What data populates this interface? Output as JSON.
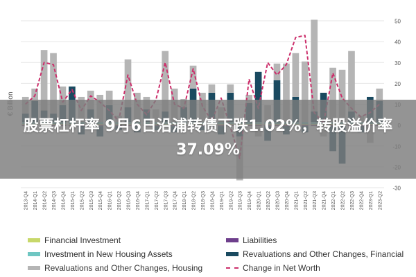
{
  "chart_data": {
    "type": "bar",
    "ylabel": "€ Billion",
    "ylim": [
      -30,
      50
    ],
    "yticks": [
      -30,
      -20,
      -10,
      0,
      10,
      20,
      30,
      40,
      50
    ],
    "grid": true,
    "legend_position": "bottom",
    "categories": [
      "2013-Q4",
      "2014-Q1",
      "2014-Q2",
      "2014-Q3",
      "2014-Q4",
      "2015-Q1",
      "2015-Q2",
      "2015-Q3",
      "2015-Q4",
      "2016-Q1",
      "2016-Q2",
      "2016-Q3",
      "2016-Q4",
      "2017-Q1",
      "2017-Q2",
      "2017-Q3",
      "2017-Q4",
      "2018-Q1",
      "2018-Q2",
      "2018-Q3",
      "2018-Q4",
      "2019-Q1",
      "2019-Q2",
      "2019-Q3",
      "2019-Q4",
      "2020-Q1",
      "2020-Q2",
      "2020-Q3",
      "2020-Q4",
      "2021-Q1",
      "2021-Q2",
      "2021-Q3",
      "2021-Q4",
      "2022-Q1",
      "2022-Q2",
      "2022-Q3",
      "2022-Q4",
      "2023-Q1",
      "2023-Q2"
    ],
    "series": [
      {
        "name": "Financial Investment",
        "kind": "bar",
        "color": "#c8d86a",
        "values": [
          0.5,
          0.5,
          1,
          0.5,
          0.5,
          0.5,
          0.5,
          0.5,
          0.5,
          0.5,
          0.5,
          0.5,
          0.5,
          0.5,
          0.5,
          0.5,
          0.5,
          0.5,
          0.5,
          0.5,
          0.5,
          0.5,
          0.5,
          0.5,
          0.5,
          0.5,
          0.5,
          0.5,
          0.5,
          0.5,
          0.5,
          0.5,
          0.5,
          0.5,
          0.5,
          0.5,
          0.5,
          0.5,
          0.5
        ]
      },
      {
        "name": "Liabilities",
        "kind": "bar",
        "color": "#6e3f8c",
        "values": [
          -0.5,
          -0.5,
          -0.5,
          -0.5,
          -0.5,
          -0.5,
          -0.5,
          -0.5,
          -0.5,
          -0.5,
          -0.5,
          -0.5,
          -0.5,
          -0.5,
          -0.5,
          -0.5,
          -0.5,
          -0.5,
          -0.5,
          -0.5,
          -0.5,
          -0.5,
          -0.5,
          -0.5,
          -0.5,
          -0.5,
          -0.5,
          -0.5,
          -0.5,
          -0.5,
          -0.5,
          -0.5,
          -0.5,
          -0.5,
          -0.5,
          -0.5,
          -0.5,
          -0.5,
          -0.5
        ]
      },
      {
        "name": "Investment in New Housing Assets",
        "kind": "bar",
        "color": "#6fc6c2",
        "values": [
          1,
          1,
          1,
          1,
          1,
          1,
          1,
          1,
          1,
          1,
          1,
          1,
          1,
          1,
          1,
          1,
          1,
          1,
          1,
          1,
          1,
          1,
          1,
          1,
          1,
          1,
          1,
          1,
          1,
          1,
          1,
          1,
          1,
          1,
          1,
          1,
          1,
          1,
          1
        ]
      },
      {
        "name": "Revaluations and Other Changes, Financial",
        "kind": "bar",
        "color": "#1a4a60",
        "values": [
          4,
          10,
          5,
          4,
          8,
          17,
          -4,
          6,
          -5,
          8,
          -2,
          7,
          -3,
          6,
          -2,
          5,
          -3,
          7,
          16,
          -2,
          14,
          -4,
          14,
          -5,
          9,
          24,
          -7,
          20,
          -4,
          12,
          -3,
          5,
          14,
          -12,
          -18,
          5,
          -3,
          12,
          10
        ]
      },
      {
        "name": "Revaluations and Other Changes, Housing",
        "kind": "bar",
        "color": "#b5b5b5",
        "values": [
          8,
          6,
          29,
          29,
          9,
          -2,
          12,
          9,
          13,
          7,
          3,
          23,
          14,
          6,
          6,
          29,
          16,
          4,
          11,
          14,
          4,
          7,
          4,
          -21,
          4,
          -5,
          8,
          8,
          28,
          21,
          29,
          44,
          -5,
          26,
          25,
          29,
          3,
          -8,
          6
        ]
      },
      {
        "name": "Change in Net Worth",
        "kind": "line",
        "color": "#cc2f6b",
        "values": [
          10,
          14,
          30,
          29,
          11,
          17,
          7,
          14,
          11,
          7,
          2,
          24,
          10,
          5,
          12,
          30,
          10,
          8,
          27,
          9,
          2,
          13,
          -1,
          -16,
          22,
          8,
          30,
          24,
          29,
          42,
          43,
          6,
          1,
          25,
          13,
          8,
          4,
          6,
          10
        ]
      }
    ]
  },
  "legend": {
    "items": [
      {
        "label": "Financial Investment",
        "color": "#c8d86a",
        "style": "bar"
      },
      {
        "label": "Liabilities",
        "color": "#6e3f8c",
        "style": "bar"
      },
      {
        "label": "Investment in New Housing Assets",
        "color": "#6fc6c2",
        "style": "bar"
      },
      {
        "label": "Revaluations and Other Changes, Financial",
        "color": "#1a4a60",
        "style": "bar"
      },
      {
        "label": "Revaluations and Other Changes, Housing",
        "color": "#b5b5b5",
        "style": "bar"
      },
      {
        "label": "Change in Net Worth",
        "color": "#cc2f6b",
        "style": "dashed-line"
      }
    ]
  },
  "banner": {
    "text": "股票杠杆率 9月6日沿浦转债下跌1.02%，转股溢价率37.09%"
  }
}
